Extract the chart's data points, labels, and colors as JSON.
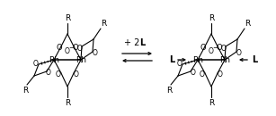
{
  "bg_color": "#ffffff",
  "line_color": "#000000",
  "figsize": [
    3.07,
    1.3
  ],
  "dpi": 100,
  "xlim": [
    0,
    307
  ],
  "ylim": [
    0,
    130
  ]
}
